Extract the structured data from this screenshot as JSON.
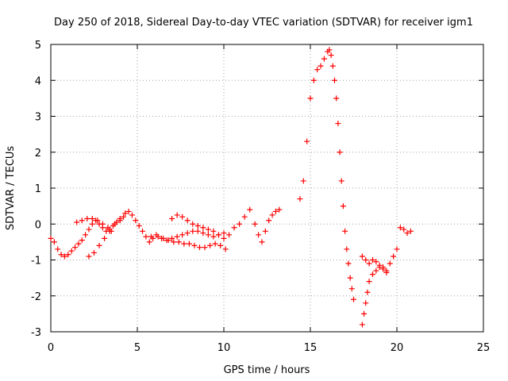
{
  "chart_data": {
    "type": "scatter",
    "title": "Day 250 of 2018, Sidereal Day-to-day VTEC variation (SDTVAR) for receiver igm1",
    "xlabel": "GPS time / hours",
    "ylabel": "SDTVAR / TECUs",
    "xlim": [
      0,
      25
    ],
    "ylim": [
      -3,
      5
    ],
    "x_ticks": [
      "0",
      "5",
      "10",
      "15",
      "20",
      "25"
    ],
    "y_ticks": [
      "-3",
      "-2",
      "-1",
      "0",
      "1",
      "2",
      "3",
      "4",
      "5"
    ],
    "grid": true,
    "marker": "+",
    "series": [
      {
        "color": "#ff0000",
        "x": [
          0.0,
          0.2,
          0.4,
          0.6,
          0.8,
          1.0,
          1.2,
          1.4,
          1.6,
          1.8,
          2.0,
          2.2,
          2.4,
          2.6,
          2.8,
          3.0,
          3.2,
          3.4,
          3.6,
          3.8,
          4.0,
          4.2,
          1.5,
          1.8,
          2.1,
          2.4,
          2.7,
          3.0,
          3.3,
          3.5,
          2.2,
          2.5,
          2.8,
          3.1,
          3.4,
          3.7,
          4.0,
          4.3,
          4.5,
          4.7,
          4.9,
          5.1,
          5.3,
          5.5,
          5.7,
          5.9,
          5.8,
          6.1,
          6.4,
          6.7,
          7.0,
          7.3,
          7.6,
          7.9,
          8.2,
          8.5,
          8.8,
          9.1,
          9.4,
          9.7,
          10.0,
          6.2,
          6.5,
          6.8,
          7.1,
          7.4,
          7.7,
          8.0,
          8.3,
          8.6,
          8.9,
          9.2,
          9.5,
          9.8,
          10.1,
          7.0,
          7.3,
          7.6,
          7.9,
          8.2,
          8.5,
          8.8,
          9.1,
          9.4,
          9.7,
          10.0,
          10.3,
          10.6,
          10.9,
          11.2,
          11.5,
          11.8,
          12.0,
          12.2,
          12.4,
          12.6,
          12.8,
          13.0,
          13.2,
          14.4,
          14.6,
          14.8,
          15.0,
          15.2,
          15.4,
          15.6,
          15.8,
          16.0,
          16.1,
          16.2,
          16.3,
          16.4,
          16.5,
          16.6,
          16.7,
          16.8,
          16.9,
          17.0,
          17.1,
          17.2,
          17.3,
          17.4,
          17.5,
          18.0,
          18.1,
          18.2,
          18.3,
          18.4,
          18.6,
          18.8,
          19.0,
          19.2,
          19.4,
          19.6,
          19.8,
          20.0,
          18.0,
          18.2,
          18.4,
          18.6,
          18.8,
          19.0,
          19.2,
          19.4,
          20.2,
          20.4,
          20.6,
          20.8
        ],
        "y": [
          -0.4,
          -0.5,
          -0.7,
          -0.85,
          -0.9,
          -0.85,
          -0.75,
          -0.65,
          -0.55,
          -0.45,
          -0.3,
          -0.15,
          0.0,
          0.1,
          0.0,
          -0.1,
          -0.2,
          -0.15,
          -0.05,
          0.05,
          0.1,
          0.2,
          0.05,
          0.1,
          0.15,
          0.15,
          0.1,
          0.0,
          -0.1,
          -0.2,
          -0.9,
          -0.8,
          -0.6,
          -0.4,
          -0.2,
          0.0,
          0.15,
          0.3,
          0.35,
          0.25,
          0.1,
          -0.05,
          -0.2,
          -0.35,
          -0.5,
          -0.4,
          -0.35,
          -0.3,
          -0.4,
          -0.45,
          -0.4,
          -0.35,
          -0.3,
          -0.25,
          -0.2,
          -0.2,
          -0.25,
          -0.3,
          -0.35,
          -0.3,
          -0.25,
          -0.35,
          -0.4,
          -0.45,
          -0.5,
          -0.5,
          -0.55,
          -0.55,
          -0.6,
          -0.65,
          -0.65,
          -0.6,
          -0.55,
          -0.6,
          -0.7,
          0.15,
          0.25,
          0.2,
          0.1,
          0.0,
          -0.05,
          -0.1,
          -0.15,
          -0.2,
          -0.3,
          -0.4,
          -0.3,
          -0.1,
          0.0,
          0.2,
          0.4,
          0.0,
          -0.3,
          -0.5,
          -0.2,
          0.1,
          0.25,
          0.35,
          0.4,
          0.7,
          1.2,
          2.3,
          3.5,
          4.0,
          4.3,
          4.4,
          4.6,
          4.8,
          4.85,
          4.7,
          4.4,
          4.0,
          3.5,
          2.8,
          2.0,
          1.2,
          0.5,
          -0.2,
          -0.7,
          -1.1,
          -1.5,
          -1.8,
          -2.1,
          -2.8,
          -2.5,
          -2.2,
          -1.9,
          -1.6,
          -1.4,
          -1.3,
          -1.2,
          -1.2,
          -1.3,
          -1.1,
          -0.9,
          -0.7,
          -0.9,
          -1.0,
          -1.1,
          -1.0,
          -1.05,
          -1.15,
          -1.25,
          -1.35,
          -0.1,
          -0.15,
          -0.25,
          -0.2
        ]
      }
    ]
  }
}
